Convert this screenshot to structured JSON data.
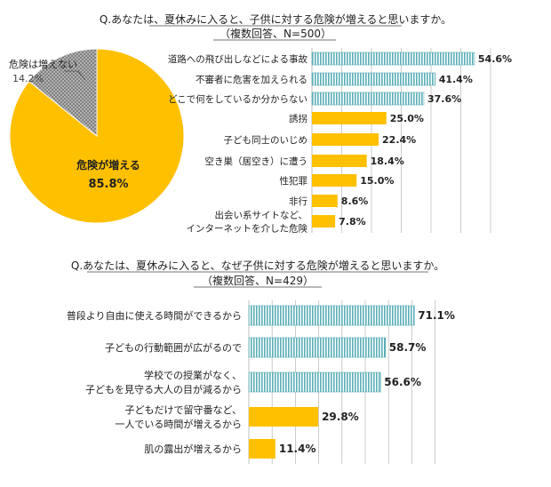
{
  "chart_data": [
    {
      "type": "pie",
      "title": "Q.あなたは、夏休みに入ると、子供に対する危険が増えると思いますか。",
      "subtitle": "（複数回答、N=500）",
      "slices": [
        {
          "label": "危険が増える",
          "value": 85.8,
          "value_label": "85.8%",
          "color": "#FFC000"
        },
        {
          "label": "危険は増えない",
          "value": 14.2,
          "value_label": "14.2%",
          "color": "#808080"
        }
      ]
    },
    {
      "type": "bar",
      "orientation": "horizontal",
      "title": "Q.あなたは、夏休みに入ると、子供に対する危険が増えると思いますか。",
      "bars": [
        {
          "label": [
            "道路への飛び出しなどによる事故"
          ],
          "value": 54.6,
          "value_label": "54.6%",
          "style": "striped"
        },
        {
          "label": [
            "不審者に危害を加えられる"
          ],
          "value": 41.4,
          "value_label": "41.4%",
          "style": "striped"
        },
        {
          "label": [
            "どこで何をしているか分からない"
          ],
          "value": 37.6,
          "value_label": "37.6%",
          "style": "striped"
        },
        {
          "label": [
            "誘拐"
          ],
          "value": 25.0,
          "value_label": "25.0%",
          "style": "solid"
        },
        {
          "label": [
            "子ども同士のいじめ"
          ],
          "value": 22.4,
          "value_label": "22.4%",
          "style": "solid"
        },
        {
          "label": [
            "空き巣（居空き）に遭う"
          ],
          "value": 18.4,
          "value_label": "18.4%",
          "style": "solid"
        },
        {
          "label": [
            "性犯罪"
          ],
          "value": 15.0,
          "value_label": "15.0%",
          "style": "solid"
        },
        {
          "label": [
            "非行"
          ],
          "value": 8.6,
          "value_label": "8.6%",
          "style": "solid"
        },
        {
          "label": [
            "出会い系サイトなど、",
            "インターネットを介した危険"
          ],
          "value": 7.8,
          "value_label": "7.8%",
          "style": "solid"
        }
      ],
      "xlim": [
        0,
        60
      ]
    },
    {
      "type": "bar",
      "orientation": "horizontal",
      "title": "Q.あなたは、夏休みに入ると、なぜ子供に対する危険が増えると思いますか。",
      "subtitle": "（複数回答、N=429）",
      "bars": [
        {
          "label": [
            "普段より自由に使える時間ができるから"
          ],
          "value": 71.1,
          "value_label": "71.1%",
          "style": "striped"
        },
        {
          "label": [
            "子どもの行動範囲が広がるので"
          ],
          "value": 58.7,
          "value_label": "58.7%",
          "style": "striped"
        },
        {
          "label": [
            "学校での授業がなく、",
            "子どもを見守る大人の目が減るから"
          ],
          "value": 56.6,
          "value_label": "56.6%",
          "style": "striped"
        },
        {
          "label": [
            "子どもだけで留守番など、",
            "一人でいる時間が増えるから"
          ],
          "value": 29.8,
          "value_label": "29.8%",
          "style": "solid"
        },
        {
          "label": [
            "肌の露出が増えるから"
          ],
          "value": 11.4,
          "value_label": "11.4%",
          "style": "solid"
        }
      ],
      "xlim": [
        0,
        80
      ]
    }
  ],
  "colors": {
    "accent": "#FFC000",
    "teal": "#5BAEB7",
    "grey": "#808080",
    "grid": "#BFBFBF"
  }
}
